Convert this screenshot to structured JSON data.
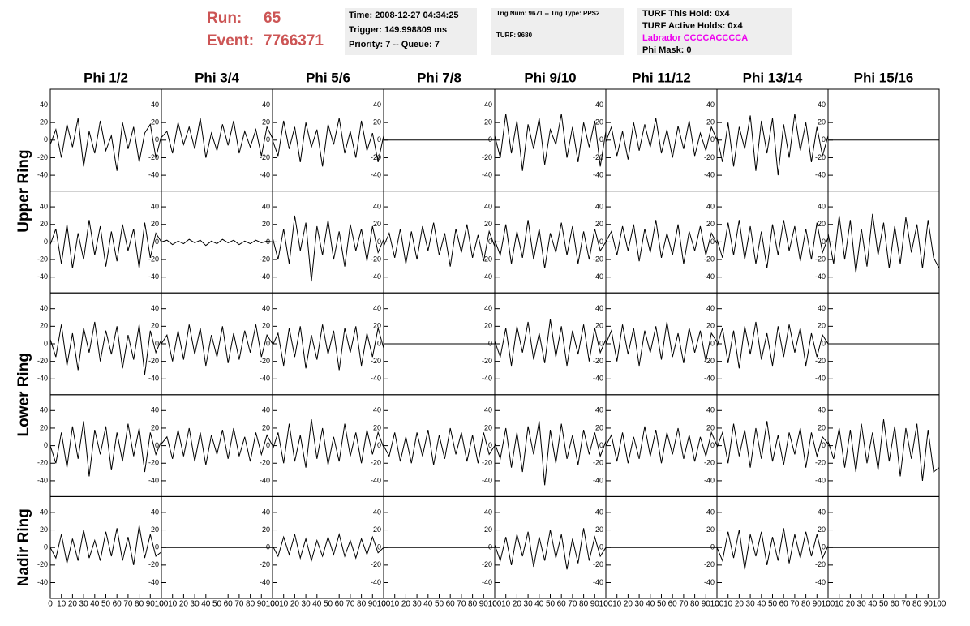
{
  "header": {
    "run_label": "Run:",
    "run": "65",
    "event_label": "Event:",
    "event": "7766371",
    "boxes": [
      {
        "lines": [
          "Time: 2008-12-27 04:34:25",
          "Trigger: 149.998809 ms",
          "Priority: 7 -- Queue: 7"
        ]
      },
      {
        "lines": [
          "Trig Num: 9671 -- Trig Type: PPS2",
          "TURF: 9680"
        ]
      },
      {
        "lines": [
          "TURF This Hold: 0x4",
          "TURF Active Holds: 0x4",
          "Labrador CCCCACCCCA",
          "Phi Mask: 0"
        ]
      }
    ]
  },
  "chart_data": {
    "type": "line",
    "columns": [
      "Phi 1/2",
      "Phi 3/4",
      "Phi 5/6",
      "Phi 7/8",
      "Phi 9/10",
      "Phi 11/12",
      "Phi 13/14",
      "Phi 15/16"
    ],
    "rings": [
      "Upper Ring",
      "Lower Ring",
      "Nadir Ring"
    ],
    "xlim": [
      0,
      100
    ],
    "ylim": [
      -58,
      58
    ],
    "xticks": [
      0,
      10,
      20,
      30,
      40,
      50,
      60,
      70,
      80,
      90,
      100
    ],
    "yticks": [
      -40,
      -20,
      0,
      20,
      40
    ],
    "color": "#000000",
    "x": [
      0,
      5,
      10,
      15,
      20,
      25,
      30,
      35,
      40,
      45,
      50,
      55,
      60,
      65,
      70,
      75,
      80,
      85,
      90,
      95,
      100
    ],
    "rows": [
      {
        "panels": [
          {
            "values": [
              -5,
              12,
              -20,
              18,
              -8,
              25,
              -30,
              10,
              -15,
              22,
              -12,
              5,
              -35,
              20,
              -10,
              15,
              -25,
              8,
              18,
              -20,
              5
            ]
          },
          {
            "values": [
              3,
              10,
              -15,
              20,
              -5,
              15,
              -10,
              25,
              -20,
              8,
              -12,
              18,
              -6,
              22,
              -15,
              10,
              -8,
              12,
              -18,
              15,
              2
            ]
          },
          {
            "values": [
              0,
              -18,
              22,
              -10,
              15,
              -25,
              20,
              -8,
              12,
              -30,
              18,
              -5,
              25,
              -15,
              10,
              -20,
              22,
              -12,
              8,
              -25,
              5
            ]
          },
          {
            "values": [
              0,
              0,
              0,
              0,
              0,
              0,
              0,
              0,
              0,
              0,
              0,
              0,
              0,
              0,
              0,
              0,
              0,
              0,
              0,
              0,
              0
            ]
          },
          {
            "values": [
              5,
              -20,
              30,
              -15,
              22,
              -35,
              18,
              -10,
              25,
              -28,
              12,
              -5,
              30,
              -20,
              15,
              -25,
              20,
              -8,
              22,
              -30,
              10
            ]
          },
          {
            "values": [
              -2,
              15,
              -18,
              10,
              -22,
              20,
              -12,
              18,
              -8,
              25,
              -15,
              12,
              -20,
              16,
              -10,
              22,
              -18,
              8,
              -12,
              15,
              0
            ]
          },
          {
            "values": [
              4,
              -25,
              20,
              -30,
              15,
              -10,
              28,
              -35,
              22,
              -15,
              25,
              -40,
              18,
              -20,
              30,
              -12,
              20,
              -25,
              15,
              -18,
              5
            ]
          },
          {
            "values": [
              0,
              0,
              0,
              0,
              0,
              0,
              0,
              0,
              0,
              0,
              0,
              0,
              0,
              0,
              0,
              0,
              0,
              0,
              0,
              0,
              0
            ]
          }
        ]
      },
      {
        "panels": [
          {
            "values": [
              -3,
              15,
              -25,
              20,
              -30,
              10,
              -20,
              25,
              -15,
              18,
              -28,
              12,
              -22,
              20,
              -10,
              15,
              -30,
              22,
              -18,
              10,
              0
            ]
          },
          {
            "values": [
              0,
              2,
              -3,
              1,
              -2,
              3,
              -1,
              2,
              -4,
              1,
              -2,
              3,
              -1,
              2,
              -3,
              1,
              -2,
              2,
              -1,
              1,
              0
            ]
          },
          {
            "values": [
              5,
              -20,
              15,
              -25,
              30,
              -10,
              22,
              -45,
              18,
              -15,
              25,
              -20,
              12,
              -28,
              20,
              -10,
              15,
              -22,
              18,
              -12,
              3
            ]
          },
          {
            "values": [
              -5,
              10,
              -18,
              15,
              -25,
              12,
              -20,
              18,
              -10,
              22,
              -15,
              10,
              -28,
              15,
              -12,
              20,
              -18,
              8,
              -22,
              12,
              -5
            ]
          },
          {
            "values": [
              2,
              -15,
              20,
              -25,
              12,
              -18,
              25,
              -20,
              15,
              -30,
              10,
              -12,
              22,
              -15,
              18,
              -25,
              12,
              -20,
              15,
              -10,
              0
            ]
          },
          {
            "values": [
              0,
              12,
              -15,
              18,
              -10,
              20,
              -22,
              15,
              -12,
              25,
              -18,
              10,
              -15,
              20,
              -25,
              12,
              -10,
              18,
              -15,
              10,
              -2
            ]
          },
          {
            "values": [
              3,
              -18,
              22,
              -15,
              25,
              -20,
              18,
              -25,
              12,
              -30,
              20,
              -15,
              25,
              -10,
              18,
              -22,
              15,
              -20,
              22,
              -12,
              5
            ]
          },
          {
            "values": [
              10,
              -25,
              30,
              -20,
              25,
              -35,
              15,
              -28,
              32,
              -15,
              22,
              -30,
              18,
              -25,
              28,
              -12,
              20,
              -30,
              25,
              -18,
              -30
            ]
          }
        ]
      },
      {
        "panels": [
          {
            "values": [
              5,
              -15,
              22,
              -25,
              12,
              -30,
              18,
              -10,
              25,
              -20,
              15,
              -12,
              20,
              -28,
              10,
              -18,
              22,
              -35,
              15,
              -10,
              5
            ]
          },
          {
            "values": [
              0,
              10,
              -20,
              15,
              -18,
              22,
              -12,
              18,
              -25,
              10,
              -15,
              20,
              -22,
              12,
              -18,
              15,
              -10,
              22,
              -15,
              10,
              0
            ]
          },
          {
            "values": [
              -2,
              12,
              -25,
              18,
              -15,
              20,
              -28,
              10,
              -18,
              22,
              -12,
              15,
              -30,
              18,
              -10,
              20,
              -25,
              12,
              -15,
              18,
              -5
            ]
          },
          {
            "values": [
              0,
              0,
              0,
              0,
              0,
              0,
              0,
              0,
              0,
              0,
              0,
              0,
              0,
              0,
              0,
              0,
              0,
              0,
              0,
              0,
              0
            ]
          },
          {
            "values": [
              3,
              -15,
              18,
              -25,
              20,
              -10,
              25,
              -18,
              12,
              -22,
              28,
              -15,
              20,
              -25,
              15,
              -12,
              22,
              -20,
              18,
              -10,
              5
            ]
          },
          {
            "values": [
              0,
              15,
              -20,
              22,
              -12,
              18,
              -25,
              15,
              -10,
              20,
              -18,
              25,
              -15,
              12,
              -22,
              18,
              -10,
              15,
              -20,
              12,
              2
            ]
          },
          {
            "values": [
              -3,
              18,
              -22,
              15,
              -28,
              20,
              -12,
              25,
              -18,
              12,
              -25,
              20,
              -15,
              22,
              -10,
              18,
              -25,
              12,
              -15,
              10,
              0
            ]
          },
          {
            "values": [
              0,
              0,
              0,
              0,
              0,
              0,
              0,
              0,
              0,
              0,
              0,
              0,
              0,
              0,
              0,
              0,
              0,
              0,
              0,
              0,
              0
            ]
          }
        ]
      },
      {
        "panels": [
          {
            "values": [
              0,
              -20,
              15,
              -25,
              22,
              -15,
              28,
              -35,
              18,
              -10,
              22,
              -28,
              15,
              -18,
              25,
              -12,
              20,
              -30,
              15,
              -10,
              5
            ]
          },
          {
            "values": [
              2,
              10,
              -15,
              18,
              -12,
              20,
              -18,
              15,
              -22,
              12,
              -10,
              18,
              -15,
              20,
              -12,
              10,
              -18,
              15,
              -10,
              12,
              0
            ]
          },
          {
            "values": [
              -5,
              15,
              -20,
              25,
              -18,
              12,
              -25,
              30,
              -15,
              20,
              -22,
              10,
              -18,
              25,
              -12,
              15,
              -20,
              18,
              -10,
              15,
              -2
            ]
          },
          {
            "values": [
              0,
              -12,
              15,
              -18,
              10,
              -20,
              15,
              -12,
              18,
              -22,
              12,
              -15,
              20,
              -10,
              15,
              -18,
              12,
              -20,
              15,
              -10,
              0
            ]
          },
          {
            "values": [
              3,
              -15,
              20,
              -25,
              15,
              -30,
              22,
              -10,
              28,
              -45,
              18,
              -20,
              25,
              -15,
              12,
              -22,
              18,
              -10,
              15,
              -12,
              5
            ]
          },
          {
            "values": [
              0,
              12,
              -18,
              15,
              -20,
              10,
              -15,
              22,
              -12,
              18,
              -20,
              15,
              -10,
              20,
              -15,
              12,
              -18,
              10,
              -12,
              15,
              0
            ]
          },
          {
            "values": [
              -2,
              15,
              -20,
              25,
              -12,
              18,
              -25,
              20,
              -15,
              28,
              -18,
              12,
              -22,
              15,
              -10,
              20,
              -25,
              15,
              -12,
              10,
              2
            ]
          },
          {
            "values": [
              5,
              -15,
              20,
              -25,
              18,
              -30,
              25,
              -20,
              15,
              -28,
              30,
              -18,
              22,
              -35,
              20,
              -15,
              25,
              -40,
              18,
              -30,
              -25
            ]
          }
        ]
      },
      {
        "panels": [
          {
            "values": [
              0,
              -12,
              15,
              -18,
              10,
              -15,
              20,
              -12,
              8,
              -15,
              18,
              -10,
              22,
              -15,
              12,
              -20,
              25,
              -12,
              15,
              -10,
              -5
            ]
          },
          {
            "values": [
              0,
              0,
              0,
              0,
              0,
              0,
              0,
              0,
              0,
              0,
              0,
              0,
              0,
              0,
              0,
              0,
              0,
              0,
              0,
              0,
              0
            ]
          },
          {
            "values": [
              2,
              -10,
              12,
              -8,
              15,
              -12,
              10,
              -15,
              8,
              -10,
              12,
              -8,
              15,
              -10,
              8,
              -12,
              10,
              -8,
              12,
              -6,
              0
            ]
          },
          {
            "values": [
              0,
              0,
              0,
              0,
              0,
              0,
              0,
              0,
              0,
              0,
              0,
              0,
              0,
              0,
              0,
              0,
              0,
              0,
              0,
              0,
              0
            ]
          },
          {
            "values": [
              3,
              -15,
              12,
              -20,
              15,
              -10,
              18,
              -22,
              12,
              -15,
              20,
              -12,
              15,
              -25,
              10,
              -18,
              22,
              -15,
              12,
              -10,
              0
            ]
          },
          {
            "values": [
              0,
              0,
              0,
              0,
              0,
              0,
              0,
              0,
              0,
              0,
              0,
              0,
              0,
              0,
              0,
              0,
              0,
              0,
              0,
              0,
              0
            ]
          },
          {
            "values": [
              0,
              -15,
              18,
              -12,
              20,
              -25,
              15,
              -10,
              18,
              -20,
              12,
              -15,
              22,
              -18,
              15,
              -12,
              18,
              -10,
              15,
              -12,
              2
            ]
          },
          {
            "values": [
              0,
              0,
              0,
              0,
              0,
              0,
              0,
              0,
              0,
              0,
              0,
              0,
              0,
              0,
              0,
              0,
              0,
              0,
              0,
              0,
              0
            ]
          }
        ]
      }
    ]
  }
}
